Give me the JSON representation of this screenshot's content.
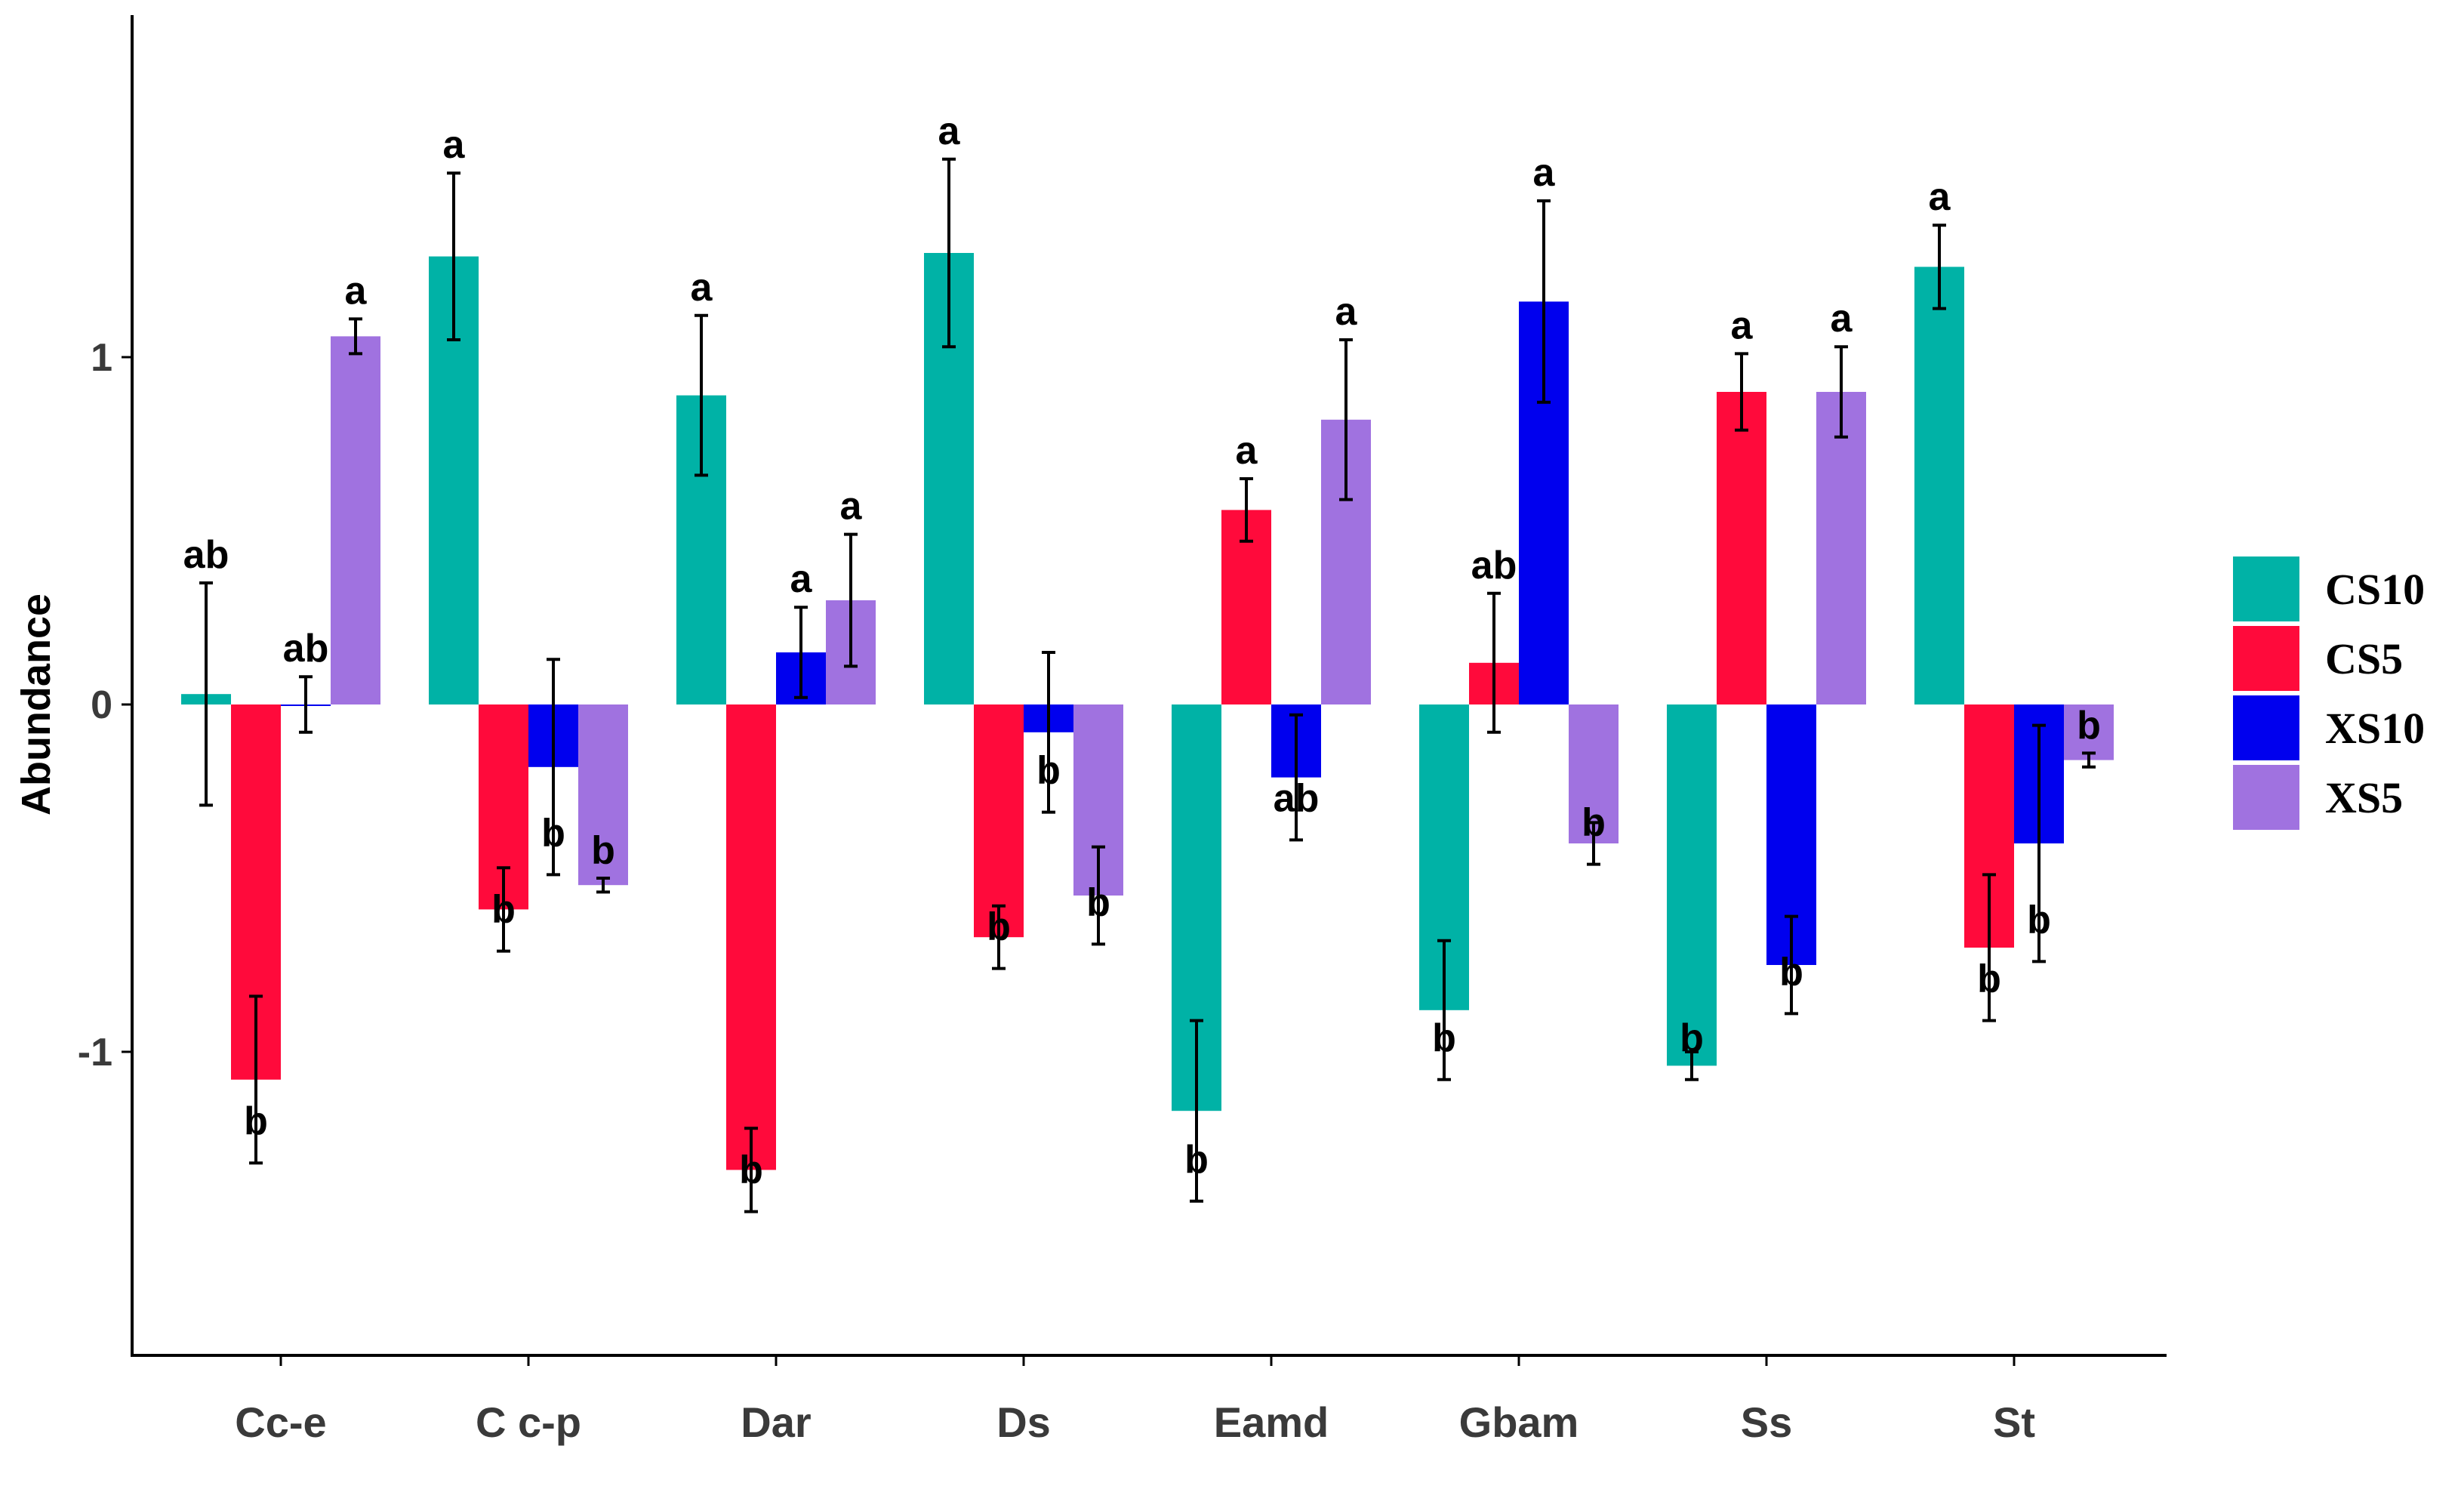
{
  "chart_data": {
    "type": "bar",
    "title": "",
    "xlabel": "",
    "ylabel": "Abundance",
    "ylim": [
      -1.9,
      1.95
    ],
    "yticks": [
      {
        "value": -1,
        "label": "-1"
      },
      {
        "value": 0,
        "label": "0"
      },
      {
        "value": 1,
        "label": "1"
      }
    ],
    "grid": false,
    "legend_position": "right",
    "categories": [
      "Cc-e",
      "C c-p",
      "Dar",
      "Ds",
      "Eamd",
      "Gbam",
      "Ss",
      "St"
    ],
    "series": [
      {
        "name": "CS10",
        "color": "#00b2a6",
        "values": [
          0.03,
          1.29,
          0.89,
          1.3,
          -1.17,
          -0.88,
          -1.04,
          1.26
        ],
        "errors": [
          0.32,
          0.24,
          0.23,
          0.27,
          0.26,
          0.2,
          0.04,
          0.12
        ],
        "letters": [
          "ab",
          "a",
          "a",
          "a",
          "b",
          "b",
          "b",
          "a"
        ]
      },
      {
        "name": "CS5",
        "color": "#ff0a3b",
        "values": [
          -1.08,
          -0.59,
          -1.34,
          -0.67,
          0.56,
          0.12,
          0.9,
          -0.7
        ],
        "errors": [
          0.24,
          0.12,
          0.12,
          0.09,
          0.09,
          0.2,
          0.11,
          0.21
        ],
        "letters": [
          "b",
          "b",
          "b",
          "b",
          "a",
          "ab",
          "a",
          "b"
        ]
      },
      {
        "name": "XS10",
        "color": "#0000ee",
        "values": [
          0.0,
          -0.18,
          0.15,
          -0.08,
          -0.21,
          1.16,
          -0.75,
          -0.4
        ],
        "errors": [
          0.08,
          0.31,
          0.13,
          0.23,
          0.18,
          0.29,
          0.14,
          0.34
        ],
        "letters": [
          "ab",
          "b",
          "a",
          "b",
          "ab",
          "a",
          "b",
          "b"
        ]
      },
      {
        "name": "XS5",
        "color": "#a072e0",
        "values": [
          1.06,
          -0.52,
          0.3,
          -0.55,
          0.82,
          -0.4,
          0.9,
          -0.16
        ],
        "errors": [
          0.05,
          0.02,
          0.19,
          0.14,
          0.23,
          0.06,
          0.13,
          0.02
        ],
        "letters": [
          "a",
          "b",
          "a",
          "b",
          "a",
          "b",
          "a",
          "b"
        ]
      }
    ]
  }
}
